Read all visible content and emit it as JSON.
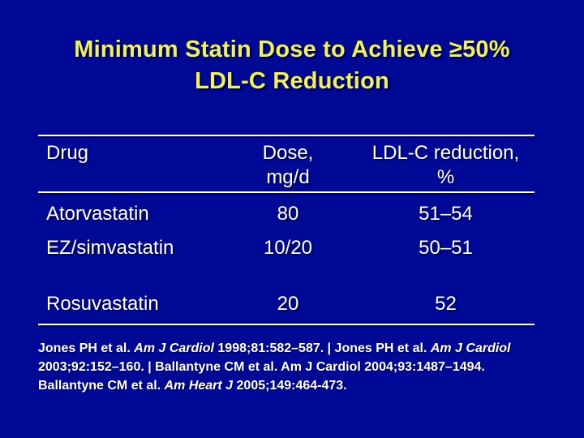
{
  "colors": {
    "bg": "#000996",
    "title": "#EFEF6C",
    "text": "#FFFFFF",
    "rule": "#FFFFFF"
  },
  "title": {
    "lines": [
      "Minimum Statin Dose to Achieve ≥50%",
      "LDL-C Reduction"
    ]
  },
  "chart_data": {
    "type": "table",
    "title": "Minimum Statin Dose to Achieve ≥50% LDL-C Reduction",
    "columns": [
      "Drug",
      "Dose, mg/d",
      "LDL-C reduction, %"
    ],
    "rows": [
      [
        "Atorvastatin",
        "80",
        "51–54"
      ],
      [
        "EZ/simvastatin",
        "10/20",
        "50–51"
      ],
      [
        "Rosuvastatin",
        "20",
        "52"
      ]
    ]
  },
  "table": {
    "headers": {
      "drug": "Drug",
      "dose_lines": [
        "Dose,",
        "mg/d"
      ],
      "ldl_lines": [
        "LDL-C reduction,",
        "%"
      ]
    },
    "rows": [
      {
        "drug": "Atorvastatin",
        "dose": "80",
        "ldl": "51–54"
      },
      {
        "drug": "EZ/simvastatin",
        "dose": "10/20",
        "ldl": "50–51"
      },
      {
        "drug": "Rosuvastatin",
        "dose": "20",
        "ldl": "52"
      }
    ]
  },
  "citation": {
    "segments": [
      {
        "text": "Jones PH et al. ",
        "italic": false
      },
      {
        "text": "Am J Cardiol",
        "italic": true
      },
      {
        "text": " 1998;81:582–587. | Jones PH et al. ",
        "italic": false
      },
      {
        "text": "Am J Cardiol",
        "italic": true
      },
      {
        "text": " 2003;92:152–160. | Ballantyne CM et al. Am J Cardiol 2004;93:1487–1494. Ballantyne CM et al. ",
        "italic": false
      },
      {
        "text": "Am Heart J",
        "italic": true
      },
      {
        "text": " 2005;149:464-473.",
        "italic": false
      }
    ]
  }
}
